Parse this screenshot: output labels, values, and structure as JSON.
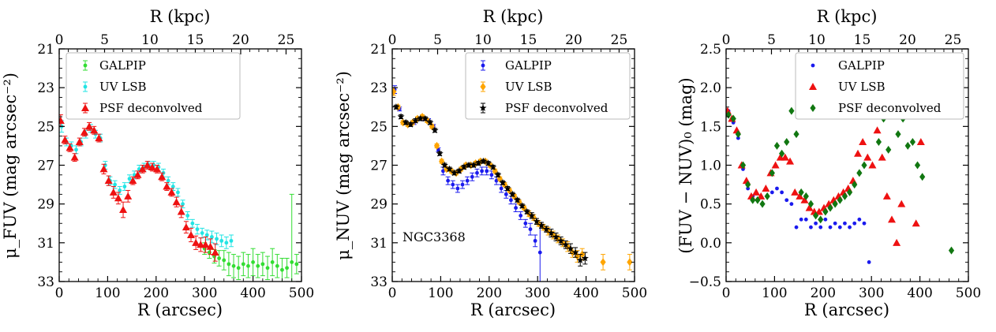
{
  "chart_data": [
    {
      "type": "scatter",
      "panel": "FUV surface brightness",
      "title": "",
      "xlabel": "R (arcsec)",
      "x2label": "R (kpc)",
      "ylabel": "μ_FUV (mag arcsec⁻²)",
      "xlim": [
        0,
        500
      ],
      "ylim": [
        33,
        21
      ],
      "y_inverted": true,
      "xticks": [
        0,
        100,
        200,
        300,
        400,
        500
      ],
      "yticks": [
        21,
        23,
        25,
        27,
        29,
        31,
        33
      ],
      "x2ticks": [
        0,
        5,
        10,
        15,
        20,
        25
      ],
      "legend_position": "top-left",
      "series": [
        {
          "name": "GALPIP",
          "color": "#33dd33",
          "marker": "dot",
          "x": [
            300,
            310,
            320,
            330,
            340,
            350,
            360,
            370,
            380,
            390,
            400,
            410,
            420,
            430,
            440,
            450,
            460,
            470,
            480,
            490
          ],
          "y": [
            31.3,
            31.5,
            31.7,
            31.8,
            31.9,
            32.1,
            32.2,
            32.3,
            32.1,
            32.2,
            32.0,
            32.2,
            32.1,
            32.3,
            32.0,
            32.2,
            32.4,
            32.3,
            32.0,
            32.1
          ],
          "err": [
            0.3,
            0.3,
            0.35,
            0.4,
            0.5,
            0.6,
            0.6,
            0.6,
            0.6,
            0.6,
            0.7,
            0.6,
            0.6,
            0.6,
            0.7,
            0.6,
            0.6,
            0.5,
            3.5,
            0.5
          ]
        },
        {
          "name": "UV LSB",
          "color": "#22e4e4",
          "marker": "dot",
          "x": [
            5,
            15,
            25,
            35,
            45,
            55,
            65,
            75,
            85,
            95,
            105,
            115,
            125,
            135,
            145,
            155,
            165,
            175,
            185,
            195,
            205,
            215,
            225,
            235,
            245,
            255,
            265,
            275,
            285,
            295,
            305,
            315,
            325,
            335,
            345,
            355
          ],
          "y": [
            25.0,
            25.8,
            26.0,
            26.2,
            25.8,
            25.4,
            25.1,
            25.4,
            25.6,
            27.0,
            27.8,
            28.0,
            28.3,
            28.1,
            27.7,
            27.5,
            27.2,
            27.1,
            27.0,
            27.0,
            27.1,
            27.4,
            27.8,
            28.1,
            28.4,
            29.0,
            29.6,
            30.0,
            30.3,
            30.5,
            30.6,
            30.7,
            30.8,
            30.9,
            31.0,
            30.9
          ],
          "err": [
            0.3,
            0.2,
            0.2,
            0.2,
            0.2,
            0.2,
            0.2,
            0.2,
            0.2,
            0.2,
            0.2,
            0.2,
            0.2,
            0.2,
            0.2,
            0.2,
            0.2,
            0.2,
            0.2,
            0.2,
            0.2,
            0.2,
            0.2,
            0.2,
            0.2,
            0.2,
            0.2,
            0.2,
            0.25,
            0.25,
            0.25,
            0.3,
            0.3,
            0.3,
            0.3,
            0.3
          ]
        },
        {
          "name": "PSF deconvolved",
          "color": "#ee1111",
          "marker": "triangle",
          "x": [
            3,
            12,
            22,
            32,
            42,
            52,
            62,
            72,
            82,
            92,
            102,
            112,
            122,
            132,
            142,
            152,
            162,
            172,
            182,
            192,
            202,
            212,
            222,
            232,
            242,
            252,
            262,
            272,
            282,
            292,
            302,
            312,
            322
          ],
          "y": [
            24.7,
            25.7,
            26.1,
            26.6,
            25.8,
            25.3,
            25.0,
            25.2,
            25.6,
            27.2,
            27.8,
            28.4,
            28.7,
            29.3,
            28.6,
            27.8,
            27.5,
            27.2,
            27.0,
            27.1,
            27.2,
            27.6,
            28.1,
            28.4,
            28.9,
            29.4,
            30.2,
            30.6,
            31.0,
            31.1,
            31.1,
            31.2,
            31.5
          ],
          "err": [
            0.3,
            0.2,
            0.2,
            0.2,
            0.2,
            0.2,
            0.2,
            0.2,
            0.2,
            0.25,
            0.25,
            0.3,
            0.3,
            0.4,
            0.3,
            0.2,
            0.2,
            0.2,
            0.2,
            0.2,
            0.2,
            0.2,
            0.2,
            0.2,
            0.25,
            0.3,
            0.3,
            0.35,
            0.35,
            0.35,
            0.4,
            0.4,
            0.45
          ]
        }
      ]
    },
    {
      "type": "scatter",
      "panel": "NUV surface brightness",
      "title": "",
      "xlabel": "R (arcsec)",
      "x2label": "R (kpc)",
      "ylabel": "μ_NUV (mag arcsec⁻²)",
      "xlim": [
        0,
        500
      ],
      "ylim": [
        33,
        21
      ],
      "y_inverted": true,
      "xticks": [
        0,
        100,
        200,
        300,
        400,
        500
      ],
      "yticks": [
        21,
        23,
        25,
        27,
        29,
        31,
        33
      ],
      "x2ticks": [
        0,
        5,
        10,
        15,
        20,
        25
      ],
      "legend_position": "top-right",
      "annotations": [
        "NGC3368"
      ],
      "series": [
        {
          "name": "GALPIP",
          "color": "#1a1aee",
          "marker": "dot",
          "x": [
            5,
            15,
            25,
            35,
            45,
            55,
            65,
            75,
            85,
            95,
            105,
            115,
            125,
            135,
            145,
            155,
            165,
            175,
            185,
            195,
            205,
            215,
            225,
            235,
            245,
            255,
            265,
            275,
            285,
            295,
            305
          ],
          "y": [
            23.1,
            24.1,
            24.8,
            24.9,
            24.8,
            24.6,
            24.6,
            24.7,
            25.0,
            26.2,
            27.3,
            27.8,
            28.0,
            28.2,
            28.0,
            27.8,
            27.6,
            27.4,
            27.3,
            27.3,
            27.5,
            27.8,
            28.2,
            28.5,
            28.8,
            29.2,
            29.6,
            30.0,
            30.3,
            30.9,
            31.5
          ],
          "err": [
            0.2,
            0.1,
            0.1,
            0.1,
            0.1,
            0.1,
            0.1,
            0.1,
            0.1,
            0.1,
            0.2,
            0.2,
            0.2,
            0.2,
            0.2,
            0.2,
            0.2,
            0.2,
            0.2,
            0.2,
            0.2,
            0.2,
            0.2,
            0.2,
            0.2,
            0.2,
            0.2,
            0.2,
            0.3,
            0.3,
            1.5
          ]
        },
        {
          "name": "UV LSB",
          "color": "#ffa500",
          "marker": "diamond",
          "x": [
            3,
            12,
            22,
            32,
            42,
            52,
            62,
            72,
            82,
            92,
            102,
            112,
            122,
            132,
            142,
            152,
            162,
            172,
            182,
            192,
            202,
            212,
            222,
            232,
            242,
            252,
            262,
            272,
            282,
            292,
            302,
            312,
            322,
            332,
            342,
            352,
            362,
            372,
            382,
            392,
            435,
            490
          ],
          "y": [
            23.2,
            24.0,
            24.8,
            24.9,
            24.8,
            24.6,
            24.5,
            24.7,
            25.0,
            26.0,
            26.8,
            27.2,
            27.3,
            27.4,
            27.2,
            27.0,
            27.0,
            26.9,
            26.8,
            26.8,
            27.0,
            27.3,
            27.7,
            28.0,
            28.3,
            28.6,
            28.9,
            29.2,
            29.5,
            29.7,
            30.0,
            30.2,
            30.4,
            30.6,
            30.8,
            31.0,
            31.2,
            31.5,
            31.7,
            31.6,
            32.0,
            32.0
          ],
          "err": [
            0.2,
            0.1,
            0.1,
            0.1,
            0.1,
            0.1,
            0.1,
            0.1,
            0.1,
            0.1,
            0.1,
            0.1,
            0.1,
            0.1,
            0.1,
            0.1,
            0.1,
            0.1,
            0.1,
            0.1,
            0.1,
            0.1,
            0.1,
            0.1,
            0.1,
            0.1,
            0.1,
            0.1,
            0.15,
            0.15,
            0.15,
            0.15,
            0.2,
            0.2,
            0.2,
            0.2,
            0.25,
            0.25,
            0.3,
            0.3,
            0.4,
            0.4
          ]
        },
        {
          "name": "PSF deconvolved",
          "color": "#000000",
          "marker": "star",
          "x": [
            8,
            18,
            28,
            38,
            48,
            58,
            68,
            78,
            88,
            98,
            108,
            118,
            128,
            138,
            148,
            158,
            168,
            178,
            188,
            198,
            208,
            218,
            228,
            238,
            248,
            258,
            268,
            278,
            288,
            298,
            308,
            318,
            328,
            338,
            348,
            358,
            368,
            378,
            388,
            398
          ],
          "y": [
            24.0,
            24.5,
            24.8,
            24.9,
            24.7,
            24.6,
            24.6,
            24.8,
            25.2,
            26.4,
            27.0,
            27.2,
            27.4,
            27.3,
            27.1,
            27.0,
            27.0,
            26.9,
            26.8,
            26.9,
            27.1,
            27.5,
            27.9,
            28.2,
            28.5,
            28.8,
            29.1,
            29.4,
            29.6,
            29.9,
            30.1,
            30.3,
            30.5,
            30.7,
            30.9,
            31.1,
            31.3,
            31.5,
            31.9,
            31.8
          ],
          "err": [
            0.1,
            0.1,
            0.1,
            0.1,
            0.1,
            0.1,
            0.1,
            0.1,
            0.1,
            0.1,
            0.1,
            0.1,
            0.1,
            0.1,
            0.1,
            0.1,
            0.1,
            0.1,
            0.1,
            0.1,
            0.1,
            0.1,
            0.1,
            0.1,
            0.1,
            0.1,
            0.1,
            0.1,
            0.15,
            0.15,
            0.15,
            0.15,
            0.2,
            0.2,
            0.2,
            0.2,
            0.25,
            0.25,
            0.3,
            0.3
          ]
        }
      ]
    },
    {
      "type": "scatter",
      "panel": "FUV-NUV colour",
      "title": "",
      "xlabel": "R (arcsec)",
      "x2label": "R (kpc)",
      "ylabel": "(FUV − NUV)₀ (mag)",
      "xlim": [
        0,
        500
      ],
      "ylim": [
        -0.5,
        2.5
      ],
      "y_inverted": false,
      "xticks": [
        0,
        100,
        200,
        300,
        400,
        500
      ],
      "yticks": [
        -0.5,
        0.0,
        0.5,
        1.0,
        1.5,
        2.0,
        2.5
      ],
      "ytick_labels": [
        "−0.5",
        "0.0",
        "0.5",
        "1.0",
        "1.5",
        "2.0",
        "2.5"
      ],
      "x2ticks": [
        0,
        5,
        10,
        15,
        20,
        25
      ],
      "legend_position": "top-right",
      "series": [
        {
          "name": "GALPIP",
          "color": "#1a1aee",
          "marker": "dot",
          "x": [
            5,
            15,
            25,
            35,
            45,
            55,
            65,
            75,
            85,
            95,
            105,
            115,
            125,
            135,
            145,
            155,
            165,
            175,
            185,
            195,
            205,
            215,
            225,
            235,
            245,
            255,
            265,
            275,
            285,
            295
          ],
          "y": [
            1.7,
            1.55,
            1.35,
            0.95,
            0.7,
            0.6,
            0.55,
            0.5,
            0.6,
            0.65,
            0.7,
            0.65,
            0.55,
            0.5,
            0.2,
            0.3,
            0.3,
            0.2,
            0.25,
            0.2,
            0.3,
            0.2,
            0.25,
            0.2,
            0.25,
            0.2,
            0.25,
            0.3,
            0.25,
            -0.25
          ]
        },
        {
          "name": "UV LSB",
          "color": "#ee1111",
          "marker": "triangle",
          "x": [
            3,
            12,
            22,
            32,
            42,
            52,
            62,
            72,
            82,
            92,
            102,
            112,
            122,
            132,
            142,
            152,
            162,
            172,
            182,
            192,
            202,
            212,
            222,
            232,
            242,
            252,
            262,
            272,
            282,
            292,
            302,
            312,
            322,
            332,
            342,
            352,
            362,
            372,
            382,
            392,
            402
          ],
          "y": [
            1.7,
            1.6,
            1.45,
            1.0,
            0.8,
            0.6,
            0.65,
            0.6,
            0.7,
            0.9,
            1.0,
            1.1,
            1.1,
            1.05,
            0.65,
            0.6,
            0.55,
            0.45,
            0.4,
            0.4,
            0.45,
            0.5,
            0.55,
            0.6,
            0.65,
            0.7,
            0.8,
            1.15,
            1.3,
            1.1,
            1.0,
            1.45,
            1.1,
            0.6,
            0.3,
            0.0,
            0.5,
            1.85,
            1.65,
            0.25,
            1.3
          ]
        },
        {
          "name": "PSF deconvolved",
          "color": "#117711",
          "marker": "diamond",
          "x": [
            5,
            15,
            25,
            35,
            45,
            55,
            65,
            75,
            85,
            95,
            105,
            115,
            125,
            135,
            145,
            155,
            165,
            175,
            185,
            195,
            205,
            215,
            225,
            235,
            245,
            255,
            265,
            275,
            285,
            295,
            305,
            315,
            325,
            335,
            345,
            355,
            365,
            375,
            385,
            395,
            405,
            465
          ],
          "y": [
            1.65,
            1.6,
            1.4,
            1.0,
            0.75,
            0.55,
            0.55,
            0.5,
            0.6,
            0.9,
            1.25,
            1.15,
            1.3,
            1.7,
            1.4,
            0.65,
            0.6,
            0.5,
            0.35,
            0.3,
            0.4,
            0.45,
            0.5,
            0.55,
            0.6,
            0.65,
            0.75,
            0.9,
            1.0,
            1.65,
            1.85,
            1.3,
            1.6,
            1.2,
            1.9,
            1.4,
            1.6,
            1.25,
            1.3,
            1.0,
            0.85,
            -0.1
          ]
        }
      ]
    }
  ]
}
